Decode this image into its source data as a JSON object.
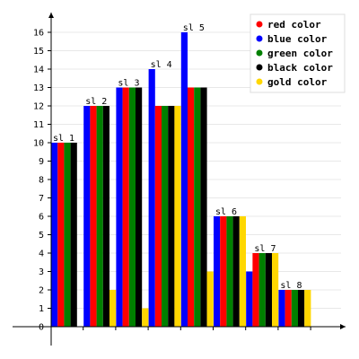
{
  "chart_data": {
    "type": "bar",
    "title": "",
    "xlabel": "",
    "ylabel": "",
    "ylim": [
      0,
      17
    ],
    "yticks": [
      0,
      1,
      2,
      3,
      4,
      5,
      6,
      7,
      8,
      9,
      10,
      11,
      12,
      13,
      14,
      15,
      16
    ],
    "grid": true,
    "legend_position": "top-right",
    "categories": [
      "sl 1",
      "sl 2",
      "sl 3",
      "sl 4",
      "sl 5",
      "sl 6",
      "sl 7",
      "sl 8"
    ],
    "series": [
      {
        "name": "blue color",
        "color": "#0000ff",
        "values": [
          10,
          12,
          13,
          14,
          16,
          6,
          3,
          2
        ]
      },
      {
        "name": "red color",
        "color": "#ff0000",
        "values": [
          10,
          12,
          13,
          12,
          13,
          6,
          4,
          2
        ]
      },
      {
        "name": "green color",
        "color": "#008000",
        "values": [
          10,
          12,
          13,
          12,
          13,
          6,
          4,
          2
        ]
      },
      {
        "name": "black color",
        "color": "#000000",
        "values": [
          10,
          12,
          13,
          12,
          13,
          6,
          4,
          2
        ]
      },
      {
        "name": "gold color",
        "color": "#ffd700",
        "values": [
          0,
          2,
          1,
          12,
          3,
          6,
          4,
          2
        ]
      }
    ],
    "legend_order": [
      "red color",
      "blue color",
      "green color",
      "black color",
      "gold color"
    ]
  }
}
